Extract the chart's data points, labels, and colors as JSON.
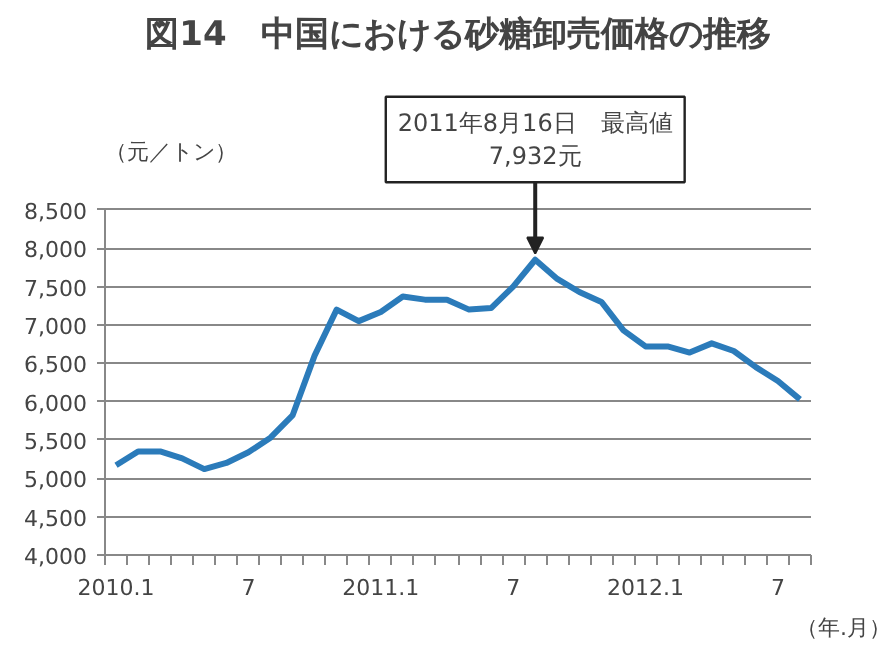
{
  "chart_data": {
    "type": "line",
    "title": "図14　中国における砂糖卸売価格の推移",
    "ylabel": "（元／トン）",
    "xlabel": "（年.月）",
    "annotations": [
      {
        "text": "2011年8月16日　最高値\n7,932元",
        "y": 7932
      }
    ],
    "categories": [
      "2010.1",
      null,
      null,
      null,
      null,
      null,
      "7",
      null,
      null,
      null,
      null,
      null,
      "2011.1",
      null,
      null,
      null,
      null,
      null,
      "7",
      null,
      null,
      null,
      null,
      null,
      "2012.1",
      null,
      null,
      null,
      null,
      null,
      "7",
      null
    ],
    "series": [
      {
        "color": "#2b7bba",
        "values": [
          5170,
          5350,
          5350,
          5260,
          5120,
          5200,
          5340,
          5530,
          5820,
          6600,
          7200,
          7050,
          7170,
          7370,
          7330,
          7330,
          7200,
          7220,
          7500,
          7850,
          7600,
          7430,
          7300,
          6930,
          6720,
          6720,
          6640,
          6760,
          6660,
          6450,
          6270,
          6030
        ]
      }
    ],
    "ylim": [
      4000,
      8500
    ],
    "yticks": [
      {
        "value": 4000,
        "label": "4,000"
      },
      {
        "value": 4500,
        "label": "4,500"
      },
      {
        "value": 5000,
        "label": "5,000"
      },
      {
        "value": 5500,
        "label": "5,500"
      },
      {
        "value": 6000,
        "label": "6,000"
      },
      {
        "value": 6500,
        "label": "6,500"
      },
      {
        "value": 7000,
        "label": "7,000"
      },
      {
        "value": 7500,
        "label": "7,500"
      },
      {
        "value": 8000,
        "label": "8,000"
      },
      {
        "value": 8500,
        "label": "8,500"
      }
    ],
    "grid": "y",
    "marker": "none",
    "line_style": "solid"
  }
}
